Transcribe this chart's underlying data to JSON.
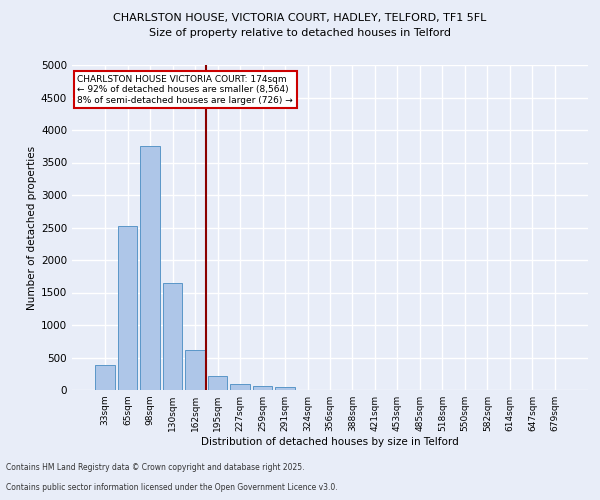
{
  "title1": "CHARLSTON HOUSE, VICTORIA COURT, HADLEY, TELFORD, TF1 5FL",
  "title2": "Size of property relative to detached houses in Telford",
  "xlabel": "Distribution of detached houses by size in Telford",
  "ylabel": "Number of detached properties",
  "categories": [
    "33sqm",
    "65sqm",
    "98sqm",
    "130sqm",
    "162sqm",
    "195sqm",
    "227sqm",
    "259sqm",
    "291sqm",
    "324sqm",
    "356sqm",
    "388sqm",
    "421sqm",
    "453sqm",
    "485sqm",
    "518sqm",
    "550sqm",
    "582sqm",
    "614sqm",
    "647sqm",
    "679sqm"
  ],
  "values": [
    380,
    2530,
    3760,
    1650,
    620,
    220,
    100,
    60,
    40,
    0,
    0,
    0,
    0,
    0,
    0,
    0,
    0,
    0,
    0,
    0,
    0
  ],
  "bar_color": "#aec6e8",
  "bar_edge_color": "#5a96c8",
  "vline_color": "#8b0000",
  "vline_position": 4.5,
  "annotation_text": "CHARLSTON HOUSE VICTORIA COURT: 174sqm\n← 92% of detached houses are smaller (8,564)\n8% of semi-detached houses are larger (726) →",
  "annotation_box_color": "#ffffff",
  "annotation_box_edge": "#cc0000",
  "ylim": [
    0,
    5000
  ],
  "yticks": [
    0,
    500,
    1000,
    1500,
    2000,
    2500,
    3000,
    3500,
    4000,
    4500,
    5000
  ],
  "bg_color": "#e8edf8",
  "plot_bg_color": "#e8edf8",
  "grid_color": "#ffffff",
  "footnote1": "Contains HM Land Registry data © Crown copyright and database right 2025.",
  "footnote2": "Contains public sector information licensed under the Open Government Licence v3.0."
}
